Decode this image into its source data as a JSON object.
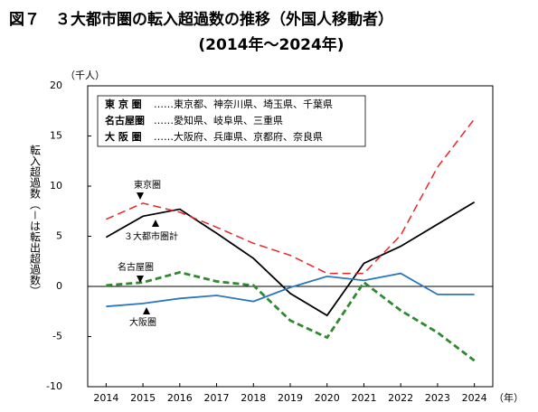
{
  "chart_data": {
    "type": "line",
    "title": "図７　３大都市圏の転入超過数の推移（外国人移動者）",
    "subtitle": "(2014年～2024年)",
    "y_unit": "（千人）",
    "x_unit": "（年）",
    "y_label": "転入超過数（－は転出超過数）",
    "x": [
      2014,
      2015,
      2016,
      2017,
      2018,
      2019,
      2020,
      2021,
      2022,
      2023,
      2024
    ],
    "xlim": [
      2013.5,
      2024.5
    ],
    "ylim": [
      -10,
      20
    ],
    "yticks": [
      -10,
      -5,
      0,
      5,
      10,
      15,
      20
    ],
    "series": [
      {
        "name": "３大都市圏計",
        "color": "#000000",
        "style": "solid",
        "values": [
          4.9,
          7.0,
          7.7,
          5.3,
          2.8,
          -0.7,
          -2.9,
          2.3,
          4.0,
          6.2,
          8.4
        ]
      },
      {
        "name": "東京圏",
        "color": "#e8262a",
        "style": "dashed",
        "values": [
          6.7,
          8.3,
          7.4,
          5.9,
          4.3,
          3.1,
          1.3,
          1.3,
          5.1,
          11.9,
          16.7
        ]
      },
      {
        "name": "名古屋圏",
        "color": "#2f8a2f",
        "style": "dashed-thick",
        "values": [
          0.1,
          0.4,
          1.4,
          0.5,
          0.1,
          -3.4,
          -5.1,
          0.4,
          -2.4,
          -4.6,
          -7.4
        ]
      },
      {
        "name": "大阪圏",
        "color": "#2a77c0",
        "style": "solid",
        "values": [
          -2.0,
          -1.7,
          -1.2,
          -0.9,
          -1.5,
          -0.1,
          1.0,
          0.6,
          1.3,
          -0.8,
          -0.8
        ]
      }
    ],
    "notes": [
      {
        "label": "東 京 圏",
        "text": "……東京都、神奈川県、埼玉県、千葉県"
      },
      {
        "label": "名古屋圏",
        "text": "……愛知県、岐阜県、三重県"
      },
      {
        "label": "大 阪 圏",
        "text": "……大阪府、兵庫県、京都府、奈良県"
      }
    ]
  }
}
